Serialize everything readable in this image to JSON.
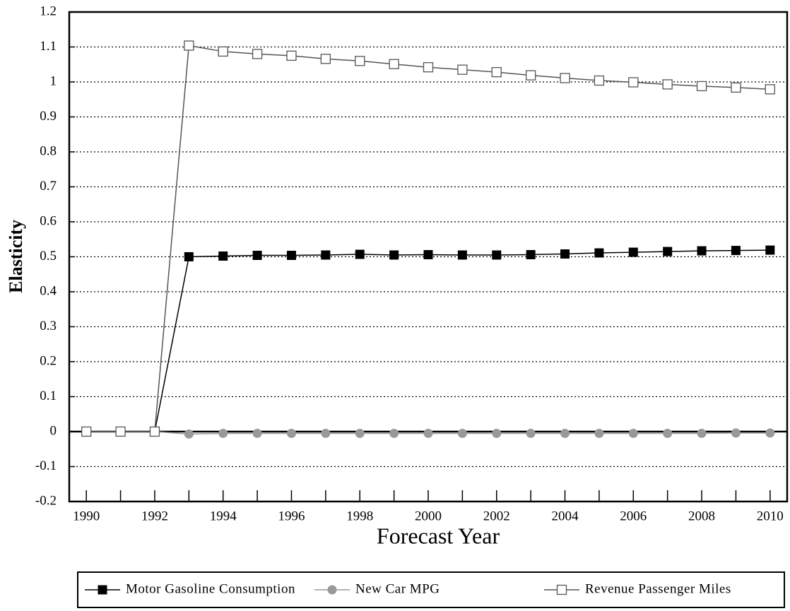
{
  "chart_data": {
    "type": "line",
    "xlabel": "Forecast Year",
    "ylabel": "Elasticity",
    "x": [
      1990,
      1991,
      1992,
      1993,
      1994,
      1995,
      1996,
      1997,
      1998,
      1999,
      2000,
      2001,
      2002,
      2003,
      2004,
      2005,
      2006,
      2007,
      2008,
      2009,
      2010
    ],
    "series": [
      {
        "name": "Motor Gasoline Consumption",
        "color": "#000000",
        "marker": "square-filled",
        "values": [
          0,
          0,
          0,
          0.5,
          0.502,
          0.504,
          0.504,
          0.505,
          0.507,
          0.505,
          0.506,
          0.505,
          0.505,
          0.506,
          0.508,
          0.511,
          0.513,
          0.515,
          0.517,
          0.518,
          0.519
        ]
      },
      {
        "name": "New Car MPG",
        "color": "#999999",
        "marker": "circle-filled",
        "values": [
          0,
          0,
          0,
          -0.007,
          -0.005,
          -0.005,
          -0.005,
          -0.005,
          -0.005,
          -0.005,
          -0.005,
          -0.005,
          -0.005,
          -0.005,
          -0.005,
          -0.005,
          -0.005,
          -0.005,
          -0.005,
          -0.004,
          -0.004
        ]
      },
      {
        "name": "Revenue Passenger Miles",
        "color": "#555555",
        "marker": "square-open",
        "values": [
          0,
          0,
          0,
          1.104,
          1.087,
          1.08,
          1.075,
          1.066,
          1.06,
          1.051,
          1.042,
          1.035,
          1.028,
          1.019,
          1.011,
          1.004,
          0.999,
          0.993,
          0.988,
          0.984,
          0.979
        ]
      }
    ],
    "xlim": [
      1989.5,
      2010.5
    ],
    "xticks": [
      1990,
      1992,
      1994,
      1996,
      1998,
      2000,
      2002,
      2004,
      2006,
      2008,
      2010
    ],
    "ylim": [
      -0.2,
      1.2
    ],
    "yticks": [
      1.2,
      1.1,
      1,
      0.9,
      0.8,
      0.7,
      0.6,
      0.5,
      0.4,
      0.3,
      0.2,
      0.1,
      0,
      -0.1,
      -0.2
    ],
    "grid": true,
    "legend": "bottom"
  }
}
